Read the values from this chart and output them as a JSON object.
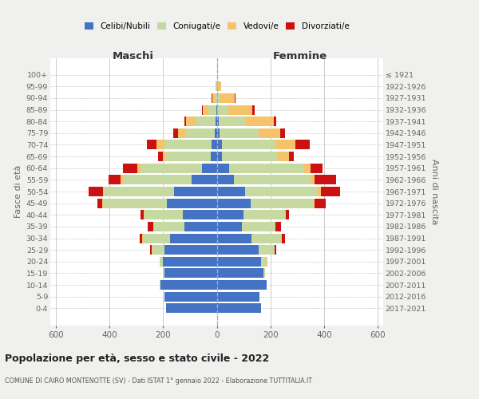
{
  "age_groups": [
    "0-4",
    "5-9",
    "10-14",
    "15-19",
    "20-24",
    "25-29",
    "30-34",
    "35-39",
    "40-44",
    "45-49",
    "50-54",
    "55-59",
    "60-64",
    "65-69",
    "70-74",
    "75-79",
    "80-84",
    "85-89",
    "90-94",
    "95-99",
    "100+"
  ],
  "birth_years": [
    "2017-2021",
    "2012-2016",
    "2007-2011",
    "2002-2006",
    "1997-2001",
    "1992-1996",
    "1987-1991",
    "1982-1986",
    "1977-1981",
    "1972-1976",
    "1967-1971",
    "1962-1966",
    "1957-1961",
    "1952-1956",
    "1947-1951",
    "1942-1946",
    "1937-1941",
    "1932-1936",
    "1927-1931",
    "1922-1926",
    "≤ 1921"
  ],
  "colors": {
    "celibi": "#4472c4",
    "coniugati": "#c5d9a0",
    "vedovi": "#f5c36a",
    "divorziati": "#cc1111"
  },
  "males": {
    "celibi": [
      190,
      195,
      210,
      195,
      200,
      195,
      175,
      120,
      125,
      185,
      160,
      95,
      55,
      22,
      20,
      8,
      5,
      2,
      0,
      0,
      0
    ],
    "coniugati": [
      0,
      0,
      2,
      2,
      12,
      45,
      100,
      115,
      145,
      240,
      260,
      255,
      230,
      170,
      175,
      110,
      75,
      30,
      8,
      2,
      0
    ],
    "vedovi": [
      0,
      0,
      0,
      0,
      2,
      2,
      2,
      2,
      2,
      3,
      5,
      8,
      10,
      10,
      30,
      25,
      35,
      20,
      8,
      2,
      0
    ],
    "divorziati": [
      0,
      0,
      0,
      0,
      0,
      5,
      10,
      20,
      12,
      18,
      52,
      45,
      55,
      18,
      35,
      18,
      5,
      3,
      2,
      0,
      0
    ]
  },
  "females": {
    "celibi": [
      165,
      160,
      185,
      175,
      165,
      155,
      130,
      95,
      100,
      125,
      105,
      65,
      45,
      18,
      18,
      10,
      8,
      2,
      0,
      0,
      0
    ],
    "coniugati": [
      0,
      0,
      2,
      4,
      22,
      60,
      110,
      120,
      155,
      235,
      270,
      285,
      280,
      210,
      200,
      145,
      100,
      40,
      12,
      2,
      0
    ],
    "vedovi": [
      0,
      0,
      0,
      0,
      2,
      2,
      3,
      3,
      3,
      5,
      12,
      15,
      25,
      40,
      75,
      80,
      105,
      90,
      55,
      15,
      2
    ],
    "divorziati": [
      0,
      0,
      0,
      0,
      0,
      5,
      10,
      20,
      10,
      40,
      72,
      80,
      45,
      18,
      52,
      18,
      10,
      10,
      3,
      0,
      0
    ]
  },
  "xlim": 620,
  "xticks": [
    -600,
    -400,
    -200,
    0,
    200,
    400,
    600
  ],
  "title": "Popolazione per età, sesso e stato civile - 2022",
  "subtitle": "COMUNE DI CAIRO MONTENOTTE (SV) - Dati ISTAT 1° gennaio 2022 - Elaborazione TUTTITALIA.IT",
  "xlabel_left": "Maschi",
  "xlabel_right": "Femmine",
  "ylabel_left": "Fasce di età",
  "ylabel_right": "Anni di nascita",
  "bg_color": "#f0f0ee",
  "plot_bg_color": "#ffffff"
}
